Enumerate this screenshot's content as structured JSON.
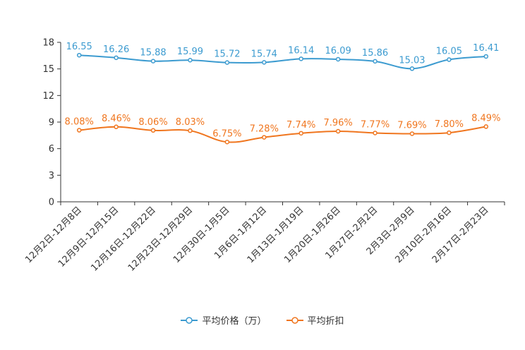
{
  "chart_data": {
    "type": "line",
    "categories": [
      "12月2日-12月8日",
      "12月9日-12月15日",
      "12月16日-12月22日",
      "12月23日-12月29日",
      "12月30日-1月5日",
      "1月6日-1月12日",
      "1月13日-1月19日",
      "1月20日-1月26日",
      "1月27日-2月2日",
      "2月3日-2月9日",
      "2月10日-2月16日",
      "2月17日-2月23日"
    ],
    "series": [
      {
        "name": "平均价格（万）",
        "values": [
          16.55,
          16.26,
          15.88,
          15.99,
          15.72,
          15.74,
          16.14,
          16.09,
          15.86,
          15.03,
          16.05,
          16.41
        ],
        "labels": [
          "16.55",
          "16.26",
          "15.88",
          "15.99",
          "15.72",
          "15.74",
          "16.14",
          "16.09",
          "15.86",
          "15.03",
          "16.05",
          "16.41"
        ],
        "color": "#3c9bd0"
      },
      {
        "name": "平均折扣",
        "values": [
          8.08,
          8.46,
          8.06,
          8.03,
          6.75,
          7.28,
          7.74,
          7.96,
          7.77,
          7.69,
          7.8,
          8.49
        ],
        "labels": [
          "8.08%",
          "8.46%",
          "8.06%",
          "8.03%",
          "6.75%",
          "7.28%",
          "7.74%",
          "7.96%",
          "7.77%",
          "7.69%",
          "7.80%",
          "8.49%"
        ],
        "color": "#f0761f"
      }
    ],
    "yticks": [
      "0",
      "3",
      "6",
      "9",
      "12",
      "15",
      "18"
    ],
    "ylim": [
      0,
      18
    ],
    "legend_position": "bottom-center"
  }
}
